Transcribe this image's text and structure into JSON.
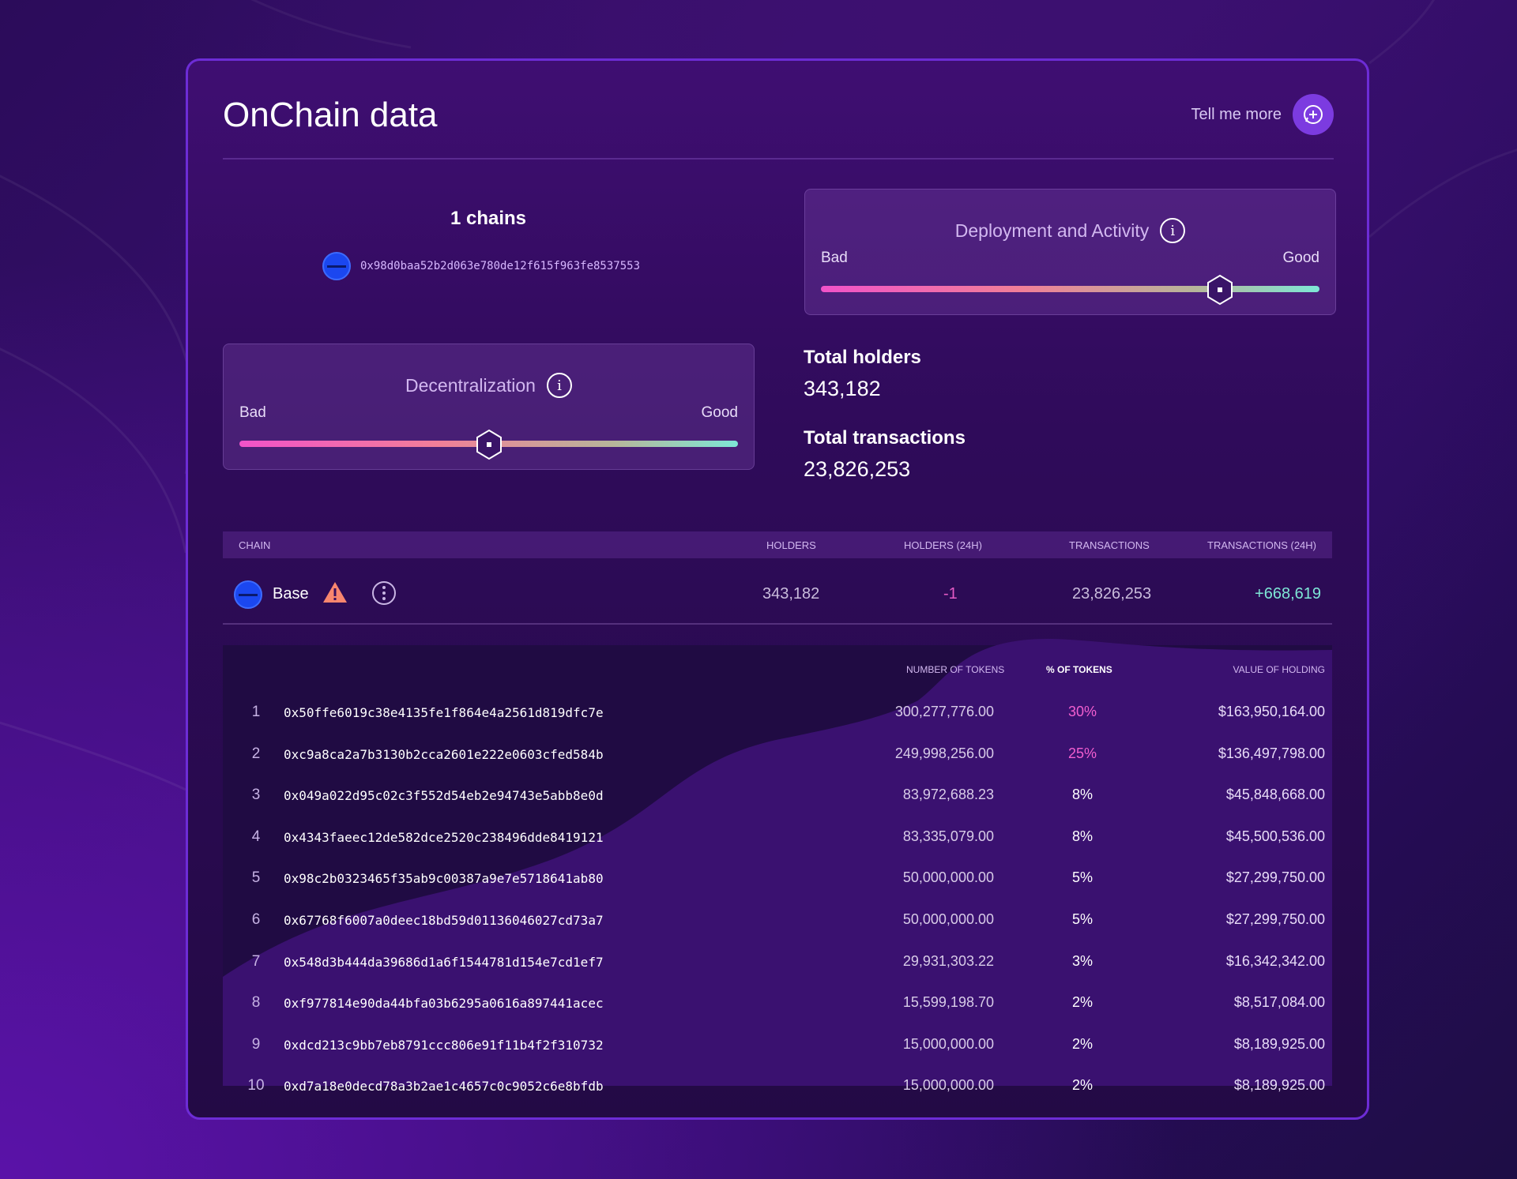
{
  "header": {
    "title": "OnChain data",
    "tell_more": "Tell me more"
  },
  "chains": {
    "title": "1 chains",
    "address": "0x98d0baa52b2d063e780de12f615f963fe8537553"
  },
  "scores": {
    "deployment": {
      "title": "Deployment and Activity",
      "bad": "Bad",
      "good": "Good",
      "level": 0.8
    },
    "decentralization": {
      "title": "Decentralization",
      "bad": "Bad",
      "good": "Good",
      "level": 0.5
    }
  },
  "stats": {
    "holders_label": "Total holders",
    "holders_value": "343,182",
    "transactions_label": "Total transactions",
    "transactions_value": "23,826,253"
  },
  "table": {
    "columns": {
      "chain": "CHAIN",
      "holders": "HOLDERS",
      "holders_24h": "HOLDERS (24H)",
      "transactions": "TRANSACTIONS",
      "transactions_24h": "TRANSACTIONS (24H)"
    },
    "row": {
      "chain": "Base",
      "holders": "343,182",
      "holders_24h": "-1",
      "transactions": "23,826,253",
      "transactions_24h": "+668,619"
    }
  },
  "holders": {
    "columns": {
      "tokens": "NUMBER OF TOKENS",
      "pct": "% OF TOKENS",
      "value": "VALUE OF HOLDING"
    },
    "rows": [
      {
        "idx": "1",
        "address": "0x50ffe6019c38e4135fe1f864e4a2561d819dfc7e",
        "tokens": "300,277,776.00",
        "pct": "30%",
        "value": "$163,950,164.00",
        "highlight": true
      },
      {
        "idx": "2",
        "address": "0xc9a8ca2a7b3130b2cca2601e222e0603cfed584b",
        "tokens": "249,998,256.00",
        "pct": "25%",
        "value": "$136,497,798.00",
        "highlight": true
      },
      {
        "idx": "3",
        "address": "0x049a022d95c02c3f552d54eb2e94743e5abb8e0d",
        "tokens": "83,972,688.23",
        "pct": "8%",
        "value": "$45,848,668.00",
        "highlight": false
      },
      {
        "idx": "4",
        "address": "0x4343faeec12de582dce2520c238496dde8419121",
        "tokens": "83,335,079.00",
        "pct": "8%",
        "value": "$45,500,536.00",
        "highlight": false
      },
      {
        "idx": "5",
        "address": "0x98c2b0323465f35ab9c00387a9e7e5718641ab80",
        "tokens": "50,000,000.00",
        "pct": "5%",
        "value": "$27,299,750.00",
        "highlight": false
      },
      {
        "idx": "6",
        "address": "0x67768f6007a0deec18bd59d01136046027cd73a7",
        "tokens": "50,000,000.00",
        "pct": "5%",
        "value": "$27,299,750.00",
        "highlight": false
      },
      {
        "idx": "7",
        "address": "0x548d3b444da39686d1a6f1544781d154e7cd1ef7",
        "tokens": "29,931,303.22",
        "pct": "3%",
        "value": "$16,342,342.00",
        "highlight": false
      },
      {
        "idx": "8",
        "address": "0xf977814e90da44bfa03b6295a0616a897441acec",
        "tokens": "15,599,198.70",
        "pct": "2%",
        "value": "$8,517,084.00",
        "highlight": false
      },
      {
        "idx": "9",
        "address": "0xdcd213c9bb7eb8791ccc806e91f11b4f2f310732",
        "tokens": "15,000,000.00",
        "pct": "2%",
        "value": "$8,189,925.00",
        "highlight": false
      },
      {
        "idx": "10",
        "address": "0xd7a18e0decd78a3b2ae1c4657c0c9052c6e8bfdb",
        "tokens": "15,000,000.00",
        "pct": "2%",
        "value": "$8,189,925.00",
        "highlight": false
      }
    ]
  },
  "colors": {
    "accent": "#7c3be0",
    "pink": "#f35fd0",
    "green": "#7ee7d6",
    "negative": "#e45bc5"
  },
  "icons": {
    "chat": "chat-plus-icon",
    "info": "info-icon",
    "warning": "warning-icon",
    "more": "more-icon",
    "chain": "base-chain-icon"
  }
}
